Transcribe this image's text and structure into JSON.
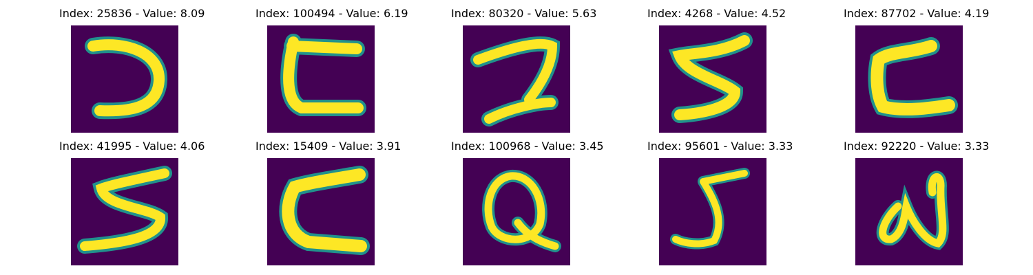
{
  "colors": {
    "background": "#440154",
    "stroke": "#fde725",
    "edge": "#21918c"
  },
  "panels": [
    {
      "title": "Index: 25836 - Value: 8.09",
      "glyph": "reversed-c"
    },
    {
      "title": "Index: 100494 - Value: 6.19",
      "glyph": "c-shape"
    },
    {
      "title": "Index: 80320 - Value: 5.63",
      "glyph": "digit-2"
    },
    {
      "title": "Index: 4268 - Value: 4.52",
      "glyph": "s-shape"
    },
    {
      "title": "Index: 87702 - Value: 4.19",
      "glyph": "c-shape"
    },
    {
      "title": "Index: 41995 - Value: 4.06",
      "glyph": "s-shape"
    },
    {
      "title": "Index: 15409 - Value: 3.91",
      "glyph": "c-shape"
    },
    {
      "title": "Index: 100968 - Value: 3.45",
      "glyph": "letter-q"
    },
    {
      "title": "Index: 95601 - Value: 3.33",
      "glyph": "letter-j"
    },
    {
      "title": "Index: 92220 - Value: 3.33",
      "glyph": "letter-n"
    }
  ]
}
